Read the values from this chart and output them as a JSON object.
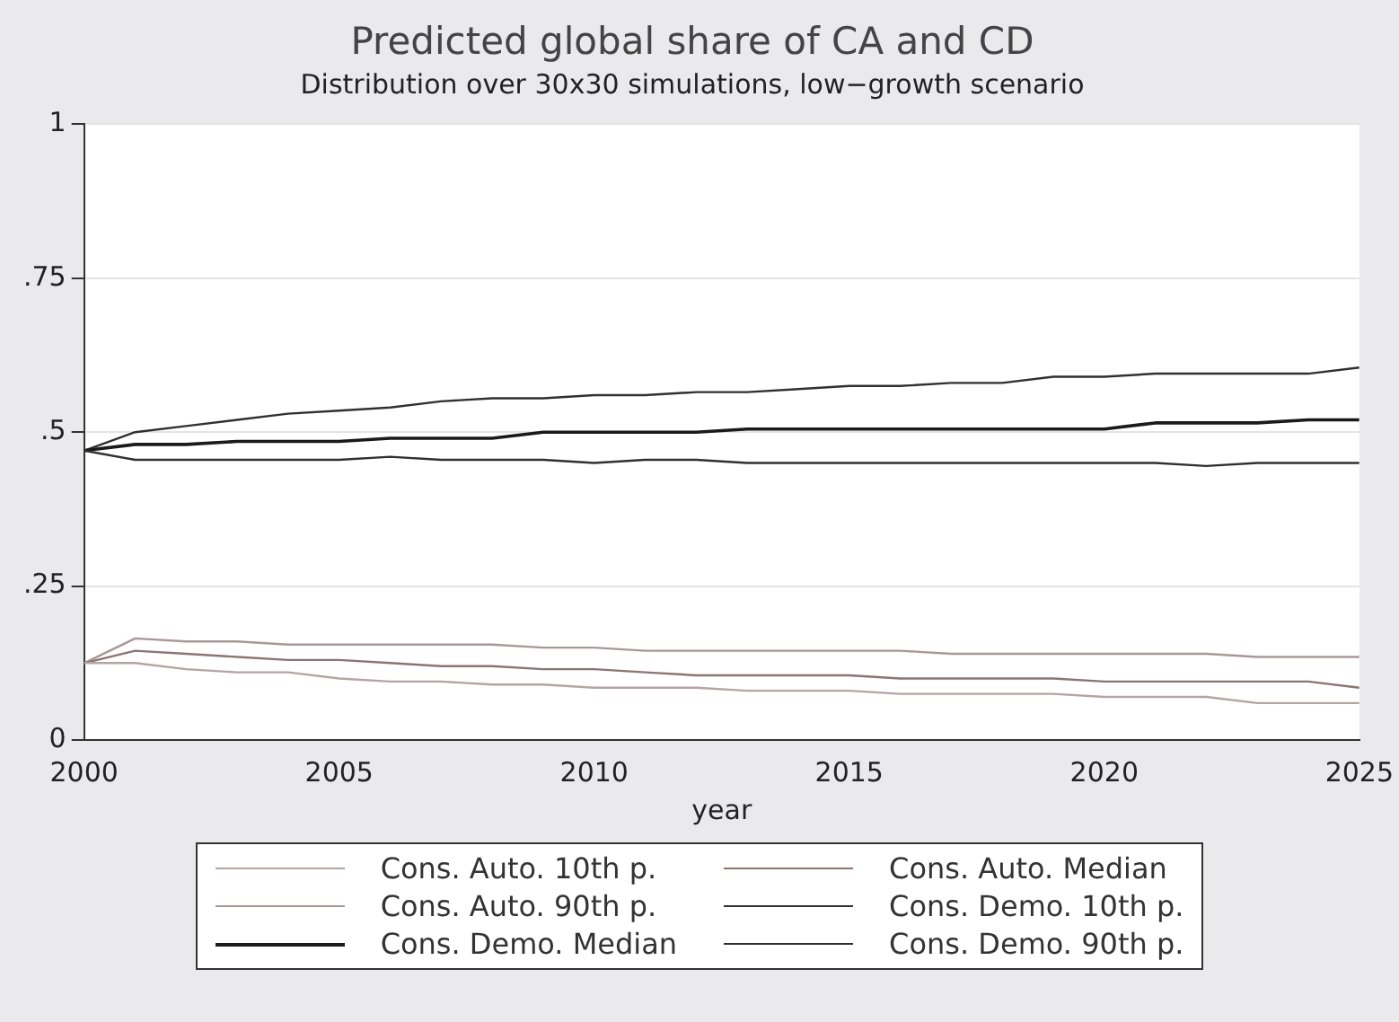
{
  "chart_data": {
    "type": "line",
    "title": "Predicted global share of CA and CD",
    "subtitle": "Distribution over 30x30 simulations, low−growth scenario",
    "xlabel": "year",
    "x": [
      2000,
      2001,
      2002,
      2003,
      2004,
      2005,
      2006,
      2007,
      2008,
      2009,
      2010,
      2011,
      2012,
      2013,
      2014,
      2015,
      2016,
      2017,
      2018,
      2019,
      2020,
      2021,
      2022,
      2023,
      2024,
      2025
    ],
    "xlim": [
      2000,
      2025
    ],
    "xticks": [
      2000,
      2005,
      2010,
      2015,
      2020,
      2025
    ],
    "ylim": [
      0,
      1
    ],
    "yticks": [
      {
        "value": 0,
        "label": "0"
      },
      {
        "value": 0.25,
        "label": ".25"
      },
      {
        "value": 0.5,
        "label": ".5"
      },
      {
        "value": 0.75,
        "label": ".75"
      },
      {
        "value": 1,
        "label": "1"
      }
    ],
    "grid": "y",
    "legend": "bottom",
    "marker": "none",
    "line_style": "solid",
    "series": [
      {
        "name": "Cons. Auto. 10th p.",
        "color": "#b4a4a4",
        "values": [
          0.125,
          0.125,
          0.115,
          0.11,
          0.11,
          0.1,
          0.095,
          0.095,
          0.09,
          0.09,
          0.085,
          0.085,
          0.085,
          0.08,
          0.08,
          0.08,
          0.075,
          0.075,
          0.075,
          0.075,
          0.07,
          0.07,
          0.07,
          0.06,
          0.06,
          0.06
        ]
      },
      {
        "name": "Cons. Auto. Median",
        "color": "#8c7474",
        "values": [
          0.125,
          0.145,
          0.14,
          0.135,
          0.13,
          0.13,
          0.125,
          0.12,
          0.12,
          0.115,
          0.115,
          0.11,
          0.105,
          0.105,
          0.105,
          0.105,
          0.1,
          0.1,
          0.1,
          0.1,
          0.095,
          0.095,
          0.095,
          0.095,
          0.095,
          0.085
        ]
      },
      {
        "name": "Cons. Auto. 90th p.",
        "color": "#a89898",
        "values": [
          0.125,
          0.165,
          0.16,
          0.16,
          0.155,
          0.155,
          0.155,
          0.155,
          0.155,
          0.15,
          0.15,
          0.145,
          0.145,
          0.145,
          0.145,
          0.145,
          0.145,
          0.14,
          0.14,
          0.14,
          0.14,
          0.14,
          0.14,
          0.135,
          0.135,
          0.135
        ]
      },
      {
        "name": "Cons. Demo. 10th p.",
        "color": "#303030",
        "values": [
          0.47,
          0.455,
          0.455,
          0.455,
          0.455,
          0.455,
          0.46,
          0.455,
          0.455,
          0.455,
          0.45,
          0.455,
          0.455,
          0.45,
          0.45,
          0.45,
          0.45,
          0.45,
          0.45,
          0.45,
          0.45,
          0.45,
          0.445,
          0.45,
          0.45,
          0.45
        ]
      },
      {
        "name": "Cons. Demo. Median",
        "color": "#1a1a1a",
        "values": [
          0.47,
          0.48,
          0.48,
          0.485,
          0.485,
          0.485,
          0.49,
          0.49,
          0.49,
          0.5,
          0.5,
          0.5,
          0.5,
          0.505,
          0.505,
          0.505,
          0.505,
          0.505,
          0.505,
          0.505,
          0.505,
          0.515,
          0.515,
          0.515,
          0.52,
          0.52
        ]
      },
      {
        "name": "Cons. Demo. 90th p.",
        "color": "#303030",
        "values": [
          0.47,
          0.5,
          0.51,
          0.52,
          0.53,
          0.535,
          0.54,
          0.55,
          0.555,
          0.555,
          0.56,
          0.56,
          0.565,
          0.565,
          0.57,
          0.575,
          0.575,
          0.58,
          0.58,
          0.59,
          0.59,
          0.595,
          0.595,
          0.595,
          0.595,
          0.605
        ]
      }
    ]
  }
}
